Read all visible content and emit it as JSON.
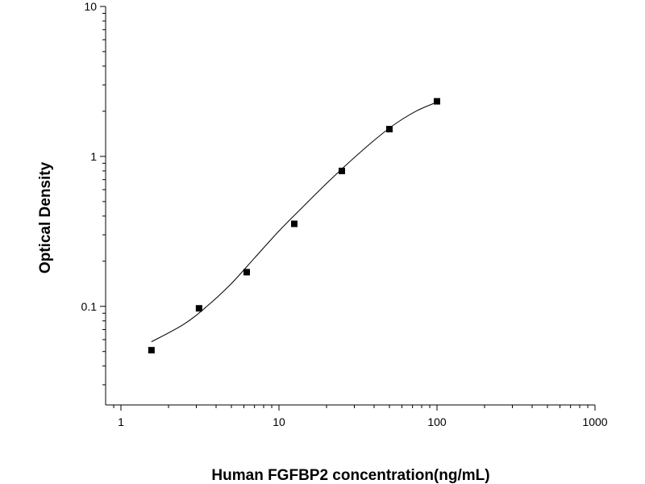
{
  "chart_data": {
    "type": "scatter",
    "title": "",
    "xlabel": "Human FGFBP2 concentration(ng/mL)",
    "ylabel": "Optical Density",
    "x_scale": "log",
    "y_scale": "log",
    "xlim": [
      0.8,
      1000
    ],
    "ylim": [
      0.022,
      10
    ],
    "x_ticks": [
      1,
      10,
      100,
      1000
    ],
    "x_tick_labels": [
      "1",
      "10",
      "100",
      "1000"
    ],
    "y_ticks": [
      0.1,
      1,
      10
    ],
    "y_tick_labels": [
      "0.1",
      "1",
      "10"
    ],
    "grid": false,
    "legend": "none",
    "series": [
      {
        "x": [
          1.56,
          3.12,
          6.25,
          12.5,
          25,
          50,
          100
        ],
        "values": [
          0.051,
          0.097,
          0.169,
          0.355,
          0.8,
          1.52,
          2.33
        ],
        "marker": "square",
        "color": "#000000"
      }
    ],
    "fit_curve": {
      "x": [
        1.56,
        2.5,
        3.5,
        5,
        7,
        10,
        14,
        20,
        28,
        40,
        55,
        75,
        100
      ],
      "values": [
        0.058,
        0.076,
        0.1,
        0.142,
        0.21,
        0.318,
        0.455,
        0.66,
        0.92,
        1.28,
        1.66,
        2.02,
        2.3
      ],
      "color": "#000000"
    }
  }
}
